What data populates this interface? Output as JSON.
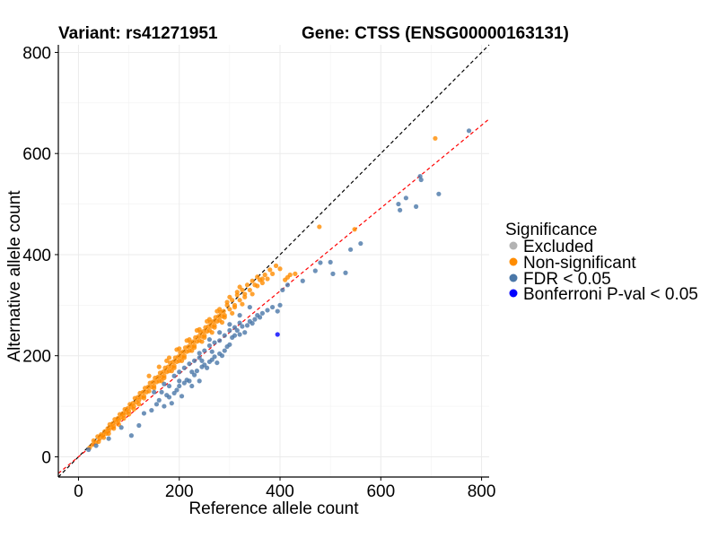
{
  "chart_data": {
    "type": "scatter",
    "title_variant": "Variant: rs41271951",
    "title_gene": "Gene: CTSS (ENSG00000163131)",
    "xlabel": "Reference allele count",
    "ylabel": "Alternative allele count",
    "xlim": [
      -40,
      815
    ],
    "ylim": [
      -40,
      815
    ],
    "xticks": [
      0,
      200,
      400,
      600,
      800
    ],
    "yticks": [
      0,
      200,
      400,
      600,
      800
    ],
    "xtick_labels": [
      "0",
      "200",
      "400",
      "600",
      "800"
    ],
    "ytick_labels": [
      "0",
      "200",
      "400",
      "600",
      "800"
    ],
    "grid": true,
    "reference_lines": [
      {
        "name": "identity",
        "slope": 1.0,
        "intercept": 0,
        "color": "#000000",
        "dash": true
      },
      {
        "name": "fit",
        "slope": 0.82,
        "intercept": 0,
        "color": "#ff0000",
        "dash": true
      }
    ],
    "legend": {
      "title": "Significance",
      "position": "right",
      "entries": [
        {
          "label": "Excluded",
          "color": "#b3b3b3"
        },
        {
          "label": "Non-significant",
          "color": "#ff8c00"
        },
        {
          "label": "FDR < 0.05",
          "color": "#4a77a8"
        },
        {
          "label": "Bonferroni P-val < 0.05",
          "color": "#0000ff"
        }
      ]
    },
    "series": [
      {
        "name": "Non-significant",
        "color": "#ff8c00",
        "points": [
          [
            22,
            18
          ],
          [
            28,
            24
          ],
          [
            30,
            32
          ],
          [
            35,
            28
          ],
          [
            38,
            40
          ],
          [
            42,
            36
          ],
          [
            45,
            44
          ],
          [
            48,
            42
          ],
          [
            52,
            50
          ],
          [
            55,
            46
          ],
          [
            58,
            56
          ],
          [
            60,
            52
          ],
          [
            62,
            64
          ],
          [
            65,
            58
          ],
          [
            68,
            66
          ],
          [
            70,
            60
          ],
          [
            72,
            74
          ],
          [
            75,
            68
          ],
          [
            78,
            76
          ],
          [
            80,
            72
          ],
          [
            82,
            84
          ],
          [
            85,
            78
          ],
          [
            88,
            86
          ],
          [
            90,
            82
          ],
          [
            92,
            94
          ],
          [
            95,
            88
          ],
          [
            98,
            96
          ],
          [
            100,
            90
          ],
          [
            102,
            104
          ],
          [
            105,
            98
          ],
          [
            108,
            106
          ],
          [
            110,
            100
          ],
          [
            112,
            116
          ],
          [
            115,
            108
          ],
          [
            118,
            118
          ],
          [
            120,
            112
          ],
          [
            122,
            126
          ],
          [
            125,
            118
          ],
          [
            128,
            128
          ],
          [
            130,
            120
          ],
          [
            132,
            136
          ],
          [
            135,
            128
          ],
          [
            138,
            138
          ],
          [
            140,
            130
          ],
          [
            142,
            146
          ],
          [
            145,
            138
          ],
          [
            148,
            148
          ],
          [
            150,
            140
          ],
          [
            152,
            156
          ],
          [
            155,
            148
          ],
          [
            158,
            158
          ],
          [
            160,
            150
          ],
          [
            162,
            166
          ],
          [
            165,
            158
          ],
          [
            168,
            168
          ],
          [
            170,
            160
          ],
          [
            172,
            176
          ],
          [
            175,
            168
          ],
          [
            178,
            178
          ],
          [
            180,
            170
          ],
          [
            182,
            186
          ],
          [
            185,
            178
          ],
          [
            188,
            188
          ],
          [
            190,
            180
          ],
          [
            192,
            196
          ],
          [
            195,
            188
          ],
          [
            198,
            198
          ],
          [
            200,
            190
          ],
          [
            202,
            206
          ],
          [
            205,
            198
          ],
          [
            208,
            208
          ],
          [
            210,
            200
          ],
          [
            212,
            216
          ],
          [
            215,
            208
          ],
          [
            218,
            218
          ],
          [
            220,
            210
          ],
          [
            222,
            226
          ],
          [
            225,
            218
          ],
          [
            228,
            228
          ],
          [
            230,
            220
          ],
          [
            232,
            236
          ],
          [
            235,
            228
          ],
          [
            238,
            238
          ],
          [
            240,
            230
          ],
          [
            242,
            246
          ],
          [
            245,
            238
          ],
          [
            248,
            248
          ],
          [
            250,
            240
          ],
          [
            252,
            256
          ],
          [
            255,
            248
          ],
          [
            258,
            258
          ],
          [
            260,
            250
          ],
          [
            262,
            266
          ],
          [
            265,
            258
          ],
          [
            268,
            268
          ],
          [
            270,
            260
          ],
          [
            272,
            276
          ],
          [
            275,
            268
          ],
          [
            278,
            278
          ],
          [
            280,
            270
          ],
          [
            282,
            286
          ],
          [
            285,
            278
          ],
          [
            288,
            288
          ],
          [
            290,
            280
          ],
          [
            295,
            300
          ],
          [
            300,
            292
          ],
          [
            305,
            310
          ],
          [
            310,
            300
          ],
          [
            315,
            320
          ],
          [
            320,
            310
          ],
          [
            325,
            330
          ],
          [
            330,
            322
          ],
          [
            335,
            340
          ],
          [
            340,
            330
          ],
          [
            345,
            348
          ],
          [
            350,
            340
          ],
          [
            355,
            356
          ],
          [
            360,
            350
          ],
          [
            365,
            352
          ],
          [
            370,
            360
          ],
          [
            380,
            370
          ],
          [
            392,
            378
          ],
          [
            400,
            372
          ],
          [
            410,
            350
          ],
          [
            415,
            355
          ],
          [
            420,
            360
          ],
          [
            430,
            362
          ],
          [
            478,
            455
          ],
          [
            548,
            450
          ],
          [
            708,
            630
          ],
          [
            140,
            160
          ],
          [
            160,
            178
          ],
          [
            180,
            196
          ],
          [
            200,
            214
          ],
          [
            220,
            232
          ],
          [
            240,
            252
          ],
          [
            260,
            272
          ],
          [
            280,
            292
          ],
          [
            300,
            316
          ],
          [
            320,
            336
          ],
          [
            150,
            136
          ],
          [
            170,
            156
          ],
          [
            190,
            176
          ],
          [
            210,
            196
          ],
          [
            230,
            216
          ],
          [
            250,
            236
          ],
          [
            270,
            256
          ],
          [
            290,
            276
          ],
          [
            310,
            296
          ],
          [
            330,
            316
          ],
          [
            120,
            104
          ],
          [
            130,
            116
          ],
          [
            100,
            84
          ],
          [
            90,
            76
          ],
          [
            80,
            64
          ],
          [
            70,
            56
          ],
          [
            60,
            46
          ],
          [
            50,
            38
          ],
          [
            40,
            30
          ],
          [
            110,
            94
          ],
          [
            175,
            190
          ],
          [
            195,
            212
          ],
          [
            215,
            230
          ],
          [
            235,
            250
          ],
          [
            255,
            268
          ],
          [
            275,
            288
          ],
          [
            295,
            306
          ],
          [
            315,
            326
          ],
          [
            165,
            150
          ],
          [
            185,
            170
          ],
          [
            205,
            190
          ],
          [
            225,
            210
          ],
          [
            245,
            228
          ],
          [
            265,
            246
          ],
          [
            285,
            266
          ],
          [
            305,
            284
          ],
          [
            325,
            302
          ],
          [
            345,
            322
          ],
          [
            355,
            338
          ],
          [
            365,
            344
          ],
          [
            375,
            352
          ],
          [
            385,
            362
          ]
        ]
      },
      {
        "name": "FDR < 0.05",
        "color": "#4a77a8",
        "points": [
          [
            20,
            14
          ],
          [
            35,
            22
          ],
          [
            60,
            36
          ],
          [
            85,
            58
          ],
          [
            105,
            42
          ],
          [
            120,
            62
          ],
          [
            130,
            86
          ],
          [
            145,
            92
          ],
          [
            155,
            104
          ],
          [
            160,
            112
          ],
          [
            170,
            100
          ],
          [
            175,
            122
          ],
          [
            180,
            118
          ],
          [
            185,
            106
          ],
          [
            190,
            126
          ],
          [
            195,
            132
          ],
          [
            200,
            140
          ],
          [
            205,
            120
          ],
          [
            210,
            146
          ],
          [
            215,
            152
          ],
          [
            220,
            150
          ],
          [
            225,
            140
          ],
          [
            230,
            162
          ],
          [
            235,
            170
          ],
          [
            240,
            150
          ],
          [
            245,
            178
          ],
          [
            250,
            182
          ],
          [
            255,
            176
          ],
          [
            260,
            188
          ],
          [
            265,
            192
          ],
          [
            270,
            198
          ],
          [
            275,
            186
          ],
          [
            280,
            204
          ],
          [
            285,
            200
          ],
          [
            290,
            210
          ],
          [
            295,
            218
          ],
          [
            300,
            222
          ],
          [
            305,
            236
          ],
          [
            310,
            240
          ],
          [
            315,
            250
          ],
          [
            320,
            242
          ],
          [
            325,
            258
          ],
          [
            330,
            246
          ],
          [
            335,
            260
          ],
          [
            340,
            268
          ],
          [
            345,
            264
          ],
          [
            350,
            272
          ],
          [
            355,
            280
          ],
          [
            360,
            276
          ],
          [
            365,
            284
          ],
          [
            375,
            290
          ],
          [
            385,
            296
          ],
          [
            395,
            288
          ],
          [
            400,
            300
          ],
          [
            405,
            330
          ],
          [
            415,
            340
          ],
          [
            445,
            348
          ],
          [
            470,
            368
          ],
          [
            480,
            384
          ],
          [
            500,
            385
          ],
          [
            505,
            362
          ],
          [
            530,
            364
          ],
          [
            540,
            410
          ],
          [
            560,
            422
          ],
          [
            635,
            500
          ],
          [
            638,
            488
          ],
          [
            650,
            512
          ],
          [
            670,
            495
          ],
          [
            678,
            555
          ],
          [
            680,
            548
          ],
          [
            715,
            520
          ],
          [
            775,
            645
          ],
          [
            240,
            205
          ],
          [
            260,
            220
          ],
          [
            280,
            230
          ],
          [
            300,
            250
          ],
          [
            320,
            265
          ],
          [
            250,
            210
          ],
          [
            270,
            226
          ],
          [
            290,
            240
          ],
          [
            310,
            256
          ],
          [
            230,
            190
          ],
          [
            210,
            176
          ],
          [
            190,
            160
          ],
          [
            170,
            144
          ],
          [
            150,
            128
          ],
          [
            200,
            168
          ],
          [
            220,
            184
          ],
          [
            260,
            232
          ],
          [
            280,
            246
          ],
          [
            300,
            262
          ],
          [
            320,
            280
          ],
          [
            340,
            296
          ],
          [
            240,
            196
          ],
          [
            200,
            150
          ],
          [
            180,
            140
          ],
          [
            165,
            128
          ],
          [
            225,
            168
          ],
          [
            245,
            190
          ],
          [
            265,
            208
          ]
        ]
      },
      {
        "name": "Bonferroni P-val < 0.05",
        "color": "#0000ff",
        "points": [
          [
            395,
            242
          ]
        ]
      }
    ]
  }
}
